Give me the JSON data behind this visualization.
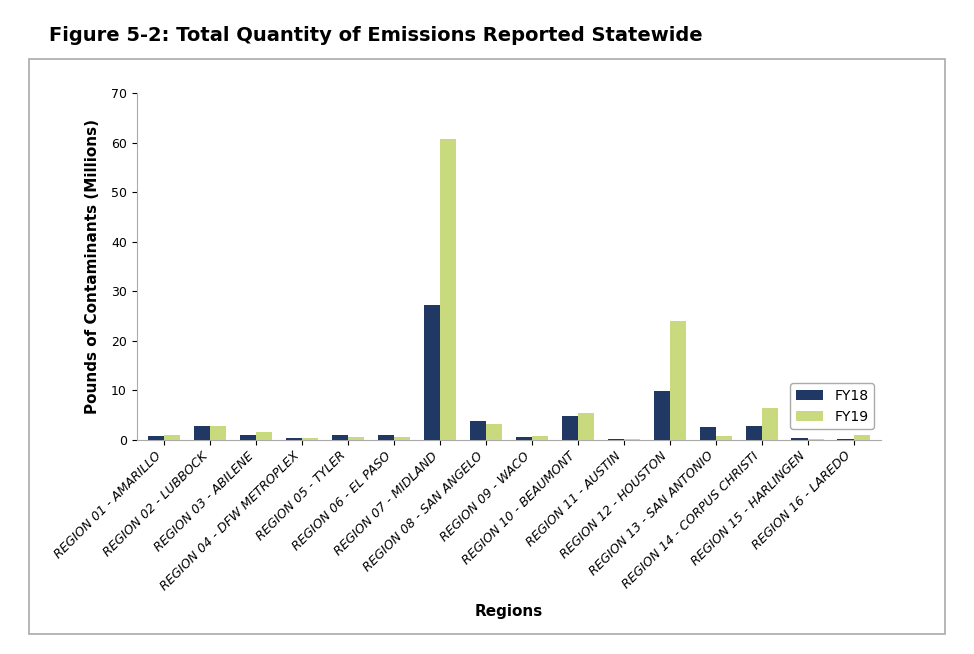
{
  "title": "Figure 5-2: Total Quantity of Emissions Reported Statewide",
  "xlabel": "Regions",
  "ylabel": "Pounds of Contaminants (Millions)",
  "categories": [
    "REGION 01 - AMARILLO",
    "REGION 02 - LUBBOCK",
    "REGION 03 - ABILENE",
    "REGION 04 - DFW METROPLEX",
    "REGION 05 - TYLER",
    "REGION 06 - EL PASO",
    "REGION 07 - MIDLAND",
    "REGION 08 - SAN ANGELO",
    "REGION 09 - WACO",
    "REGION 10 - BEAUMONT",
    "REGION 11 - AUSTIN",
    "REGION 12 - HOUSTON",
    "REGION 13 - SAN ANTONIO",
    "REGION 14 - CORPUS CHRISTI",
    "REGION 15 - HARLINGEN",
    "REGION 16 - LAREDO"
  ],
  "fy18": [
    0.8,
    2.8,
    0.9,
    0.3,
    0.9,
    0.9,
    27.2,
    3.8,
    0.5,
    4.8,
    0.2,
    9.8,
    2.5,
    2.7,
    0.3,
    0.2
  ],
  "fy19": [
    1.0,
    2.8,
    1.5,
    0.3,
    0.5,
    0.5,
    60.7,
    3.1,
    0.7,
    5.4,
    0.2,
    24.0,
    0.8,
    6.3,
    0.2,
    0.9
  ],
  "fy18_color": "#1f3864",
  "fy19_color": "#c9d97e",
  "plot_bg_color": "#e8e8e8",
  "outer_bg_color": "#ffffff",
  "grid_color": "#ffffff",
  "ylim": [
    0,
    70
  ],
  "yticks": [
    0,
    10,
    20,
    30,
    40,
    50,
    60,
    70
  ],
  "legend_labels": [
    "FY18",
    "FY19"
  ],
  "title_fontsize": 14,
  "axis_label_fontsize": 11,
  "tick_fontsize": 9
}
